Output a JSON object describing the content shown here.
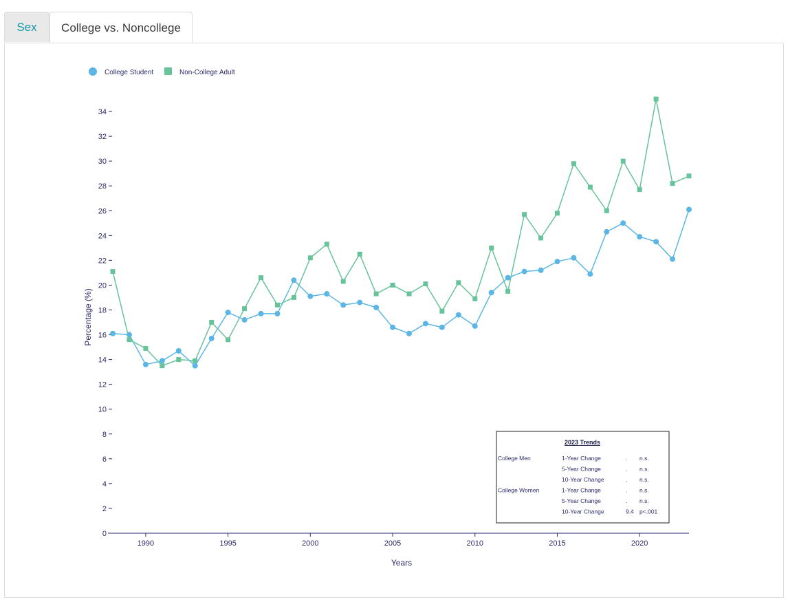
{
  "tabs": [
    {
      "label": "Sex",
      "active": false
    },
    {
      "label": "College vs. Noncollege",
      "active": true
    }
  ],
  "legend": [
    {
      "label": "College Student",
      "marker": "circle",
      "color": "#5bb6e6"
    },
    {
      "label": "Non-College Adult",
      "marker": "square",
      "color": "#66c39a"
    }
  ],
  "chart_data": {
    "type": "line",
    "xlabel": "Years",
    "ylabel": "Percentage (%)",
    "ylim": [
      0,
      35
    ],
    "xlim": [
      1988,
      2023
    ],
    "x_ticks": [
      1990,
      1995,
      2000,
      2005,
      2010,
      2015,
      2020
    ],
    "y_ticks": [
      0,
      2,
      4,
      6,
      8,
      10,
      12,
      14,
      16,
      18,
      20,
      22,
      24,
      26,
      28,
      30,
      32,
      34
    ],
    "grid": false,
    "legend_position": "top-left",
    "x": [
      1988,
      1989,
      1990,
      1991,
      1992,
      1993,
      1994,
      1995,
      1996,
      1997,
      1998,
      1999,
      2000,
      2001,
      2002,
      2003,
      2004,
      2005,
      2006,
      2007,
      2008,
      2009,
      2010,
      2011,
      2012,
      2013,
      2014,
      2015,
      2016,
      2017,
      2018,
      2019,
      2020,
      2021,
      2022,
      2023
    ],
    "series": [
      {
        "name": "College Student",
        "color": "#5bb6e6",
        "marker": "circle",
        "values": [
          16.1,
          16.0,
          13.6,
          13.9,
          14.7,
          13.5,
          15.7,
          17.8,
          17.2,
          17.7,
          17.7,
          20.4,
          19.1,
          19.3,
          18.4,
          18.6,
          18.2,
          16.6,
          16.1,
          16.9,
          16.6,
          17.6,
          16.7,
          19.4,
          20.6,
          21.1,
          21.2,
          21.9,
          22.2,
          20.9,
          24.3,
          25.0,
          23.9,
          23.5,
          22.1,
          26.1
        ]
      },
      {
        "name": "Non-College Adult",
        "color": "#66c39a",
        "marker": "square",
        "values": [
          21.1,
          15.6,
          14.9,
          13.5,
          14.0,
          13.9,
          17.0,
          15.6,
          18.1,
          20.6,
          18.4,
          19.0,
          22.2,
          23.3,
          20.3,
          22.5,
          19.3,
          20.0,
          19.3,
          20.1,
          17.9,
          20.2,
          18.9,
          23.0,
          19.5,
          25.7,
          23.8,
          25.8,
          29.8,
          27.9,
          26.0,
          30.0,
          27.7,
          35.0,
          28.2,
          28.8
        ]
      }
    ]
  },
  "trends": {
    "title": "2023 Trends",
    "rows": [
      {
        "group": "College Men",
        "change": "1-Year Change",
        "value": ".",
        "sig": "n.s."
      },
      {
        "group": "",
        "change": "5-Year Change",
        "value": ".",
        "sig": "n.s."
      },
      {
        "group": "",
        "change": "10-Year Change",
        "value": ".",
        "sig": "n.s."
      },
      {
        "group": "College Women",
        "change": "1-Year Change",
        "value": ".",
        "sig": "n.s."
      },
      {
        "group": "",
        "change": "5-Year Change",
        "value": ".",
        "sig": "n.s."
      },
      {
        "group": "",
        "change": "10-Year Change",
        "value": "9.4",
        "sig": "p<.001"
      }
    ]
  }
}
